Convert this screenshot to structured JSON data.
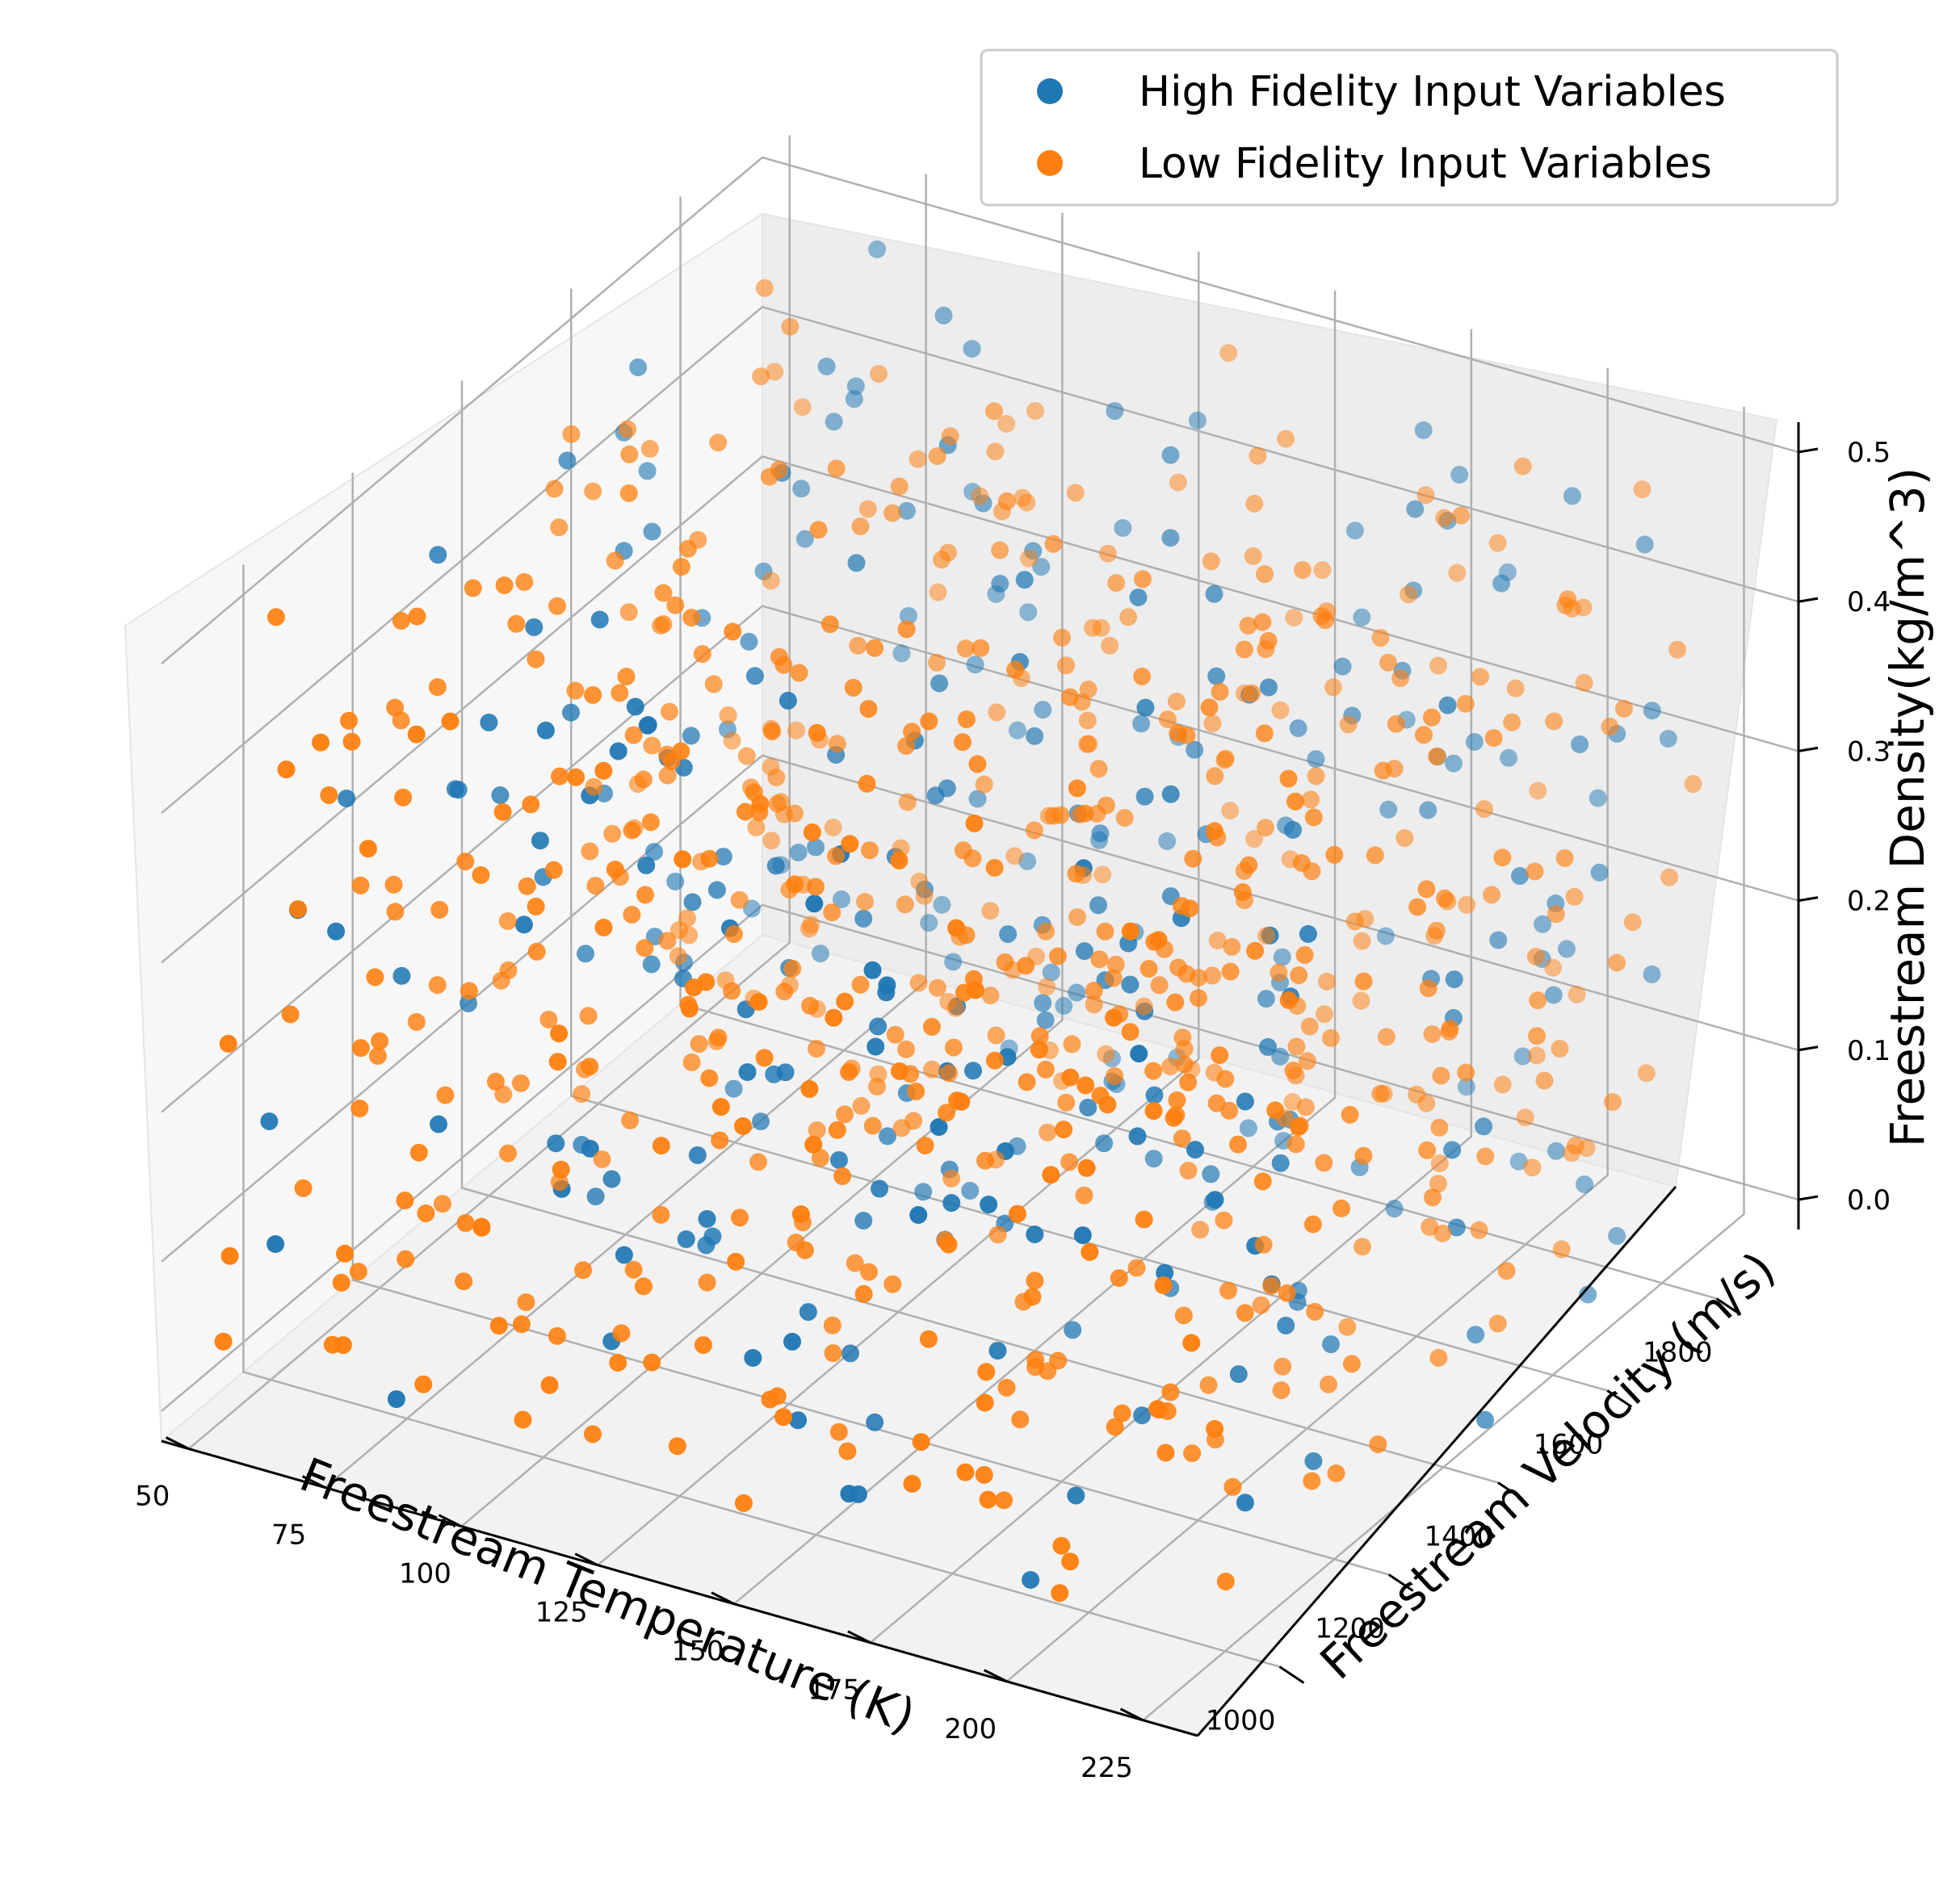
{
  "chart_data": {
    "type": "scatter",
    "projection": "3d",
    "xlabel": "Freestream Temperature (K)",
    "ylabel": "Freestream Velocity (m/s)",
    "zlabel": "Freestream Density(kg/m^3)",
    "xlim": [
      45,
      235
    ],
    "ylim": [
      850,
      1950
    ],
    "zlim": [
      -0.02,
      0.52
    ],
    "x_ticks": [
      "50",
      "75",
      "100",
      "125",
      "150",
      "175",
      "200",
      "225"
    ],
    "y_ticks": [
      "1000",
      "1200",
      "1400",
      "1600",
      "1800"
    ],
    "z_ticks": [
      "0.0",
      "0.1",
      "0.2",
      "0.3",
      "0.4",
      "0.5"
    ],
    "grid": true,
    "legend": {
      "position": "top-right"
    },
    "series": [
      {
        "name": "High Fidelity Input Variables",
        "color": "#1f77b4",
        "count": 300,
        "points": [
          [
            60,
            950,
            0.32
          ],
          [
            80,
            1100,
            0.42
          ],
          [
            110,
            1350,
            0.21
          ],
          [
            140,
            1500,
            0.35
          ],
          [
            165,
            1700,
            0.1
          ],
          [
            190,
            1250,
            0.44
          ],
          [
            210,
            1650,
            0.24
          ],
          [
            95,
            1800,
            0.06
          ],
          [
            125,
            1050,
            0.15
          ],
          [
            175,
            1400,
            0.31
          ]
        ]
      },
      {
        "name": "Low Fidelity Input Variables",
        "color": "#ff7f0e",
        "count": 700,
        "points": [
          [
            55,
            1000,
            0.3
          ],
          [
            75,
            1200,
            0.45
          ],
          [
            105,
            1450,
            0.12
          ],
          [
            135,
            1600,
            0.38
          ],
          [
            160,
            1100,
            0.22
          ],
          [
            185,
            1750,
            0.08
          ],
          [
            215,
            1300,
            0.41
          ],
          [
            90,
            1550,
            0.18
          ],
          [
            150,
            1850,
            0.27
          ],
          [
            200,
            950,
            0.04
          ]
        ]
      }
    ]
  }
}
